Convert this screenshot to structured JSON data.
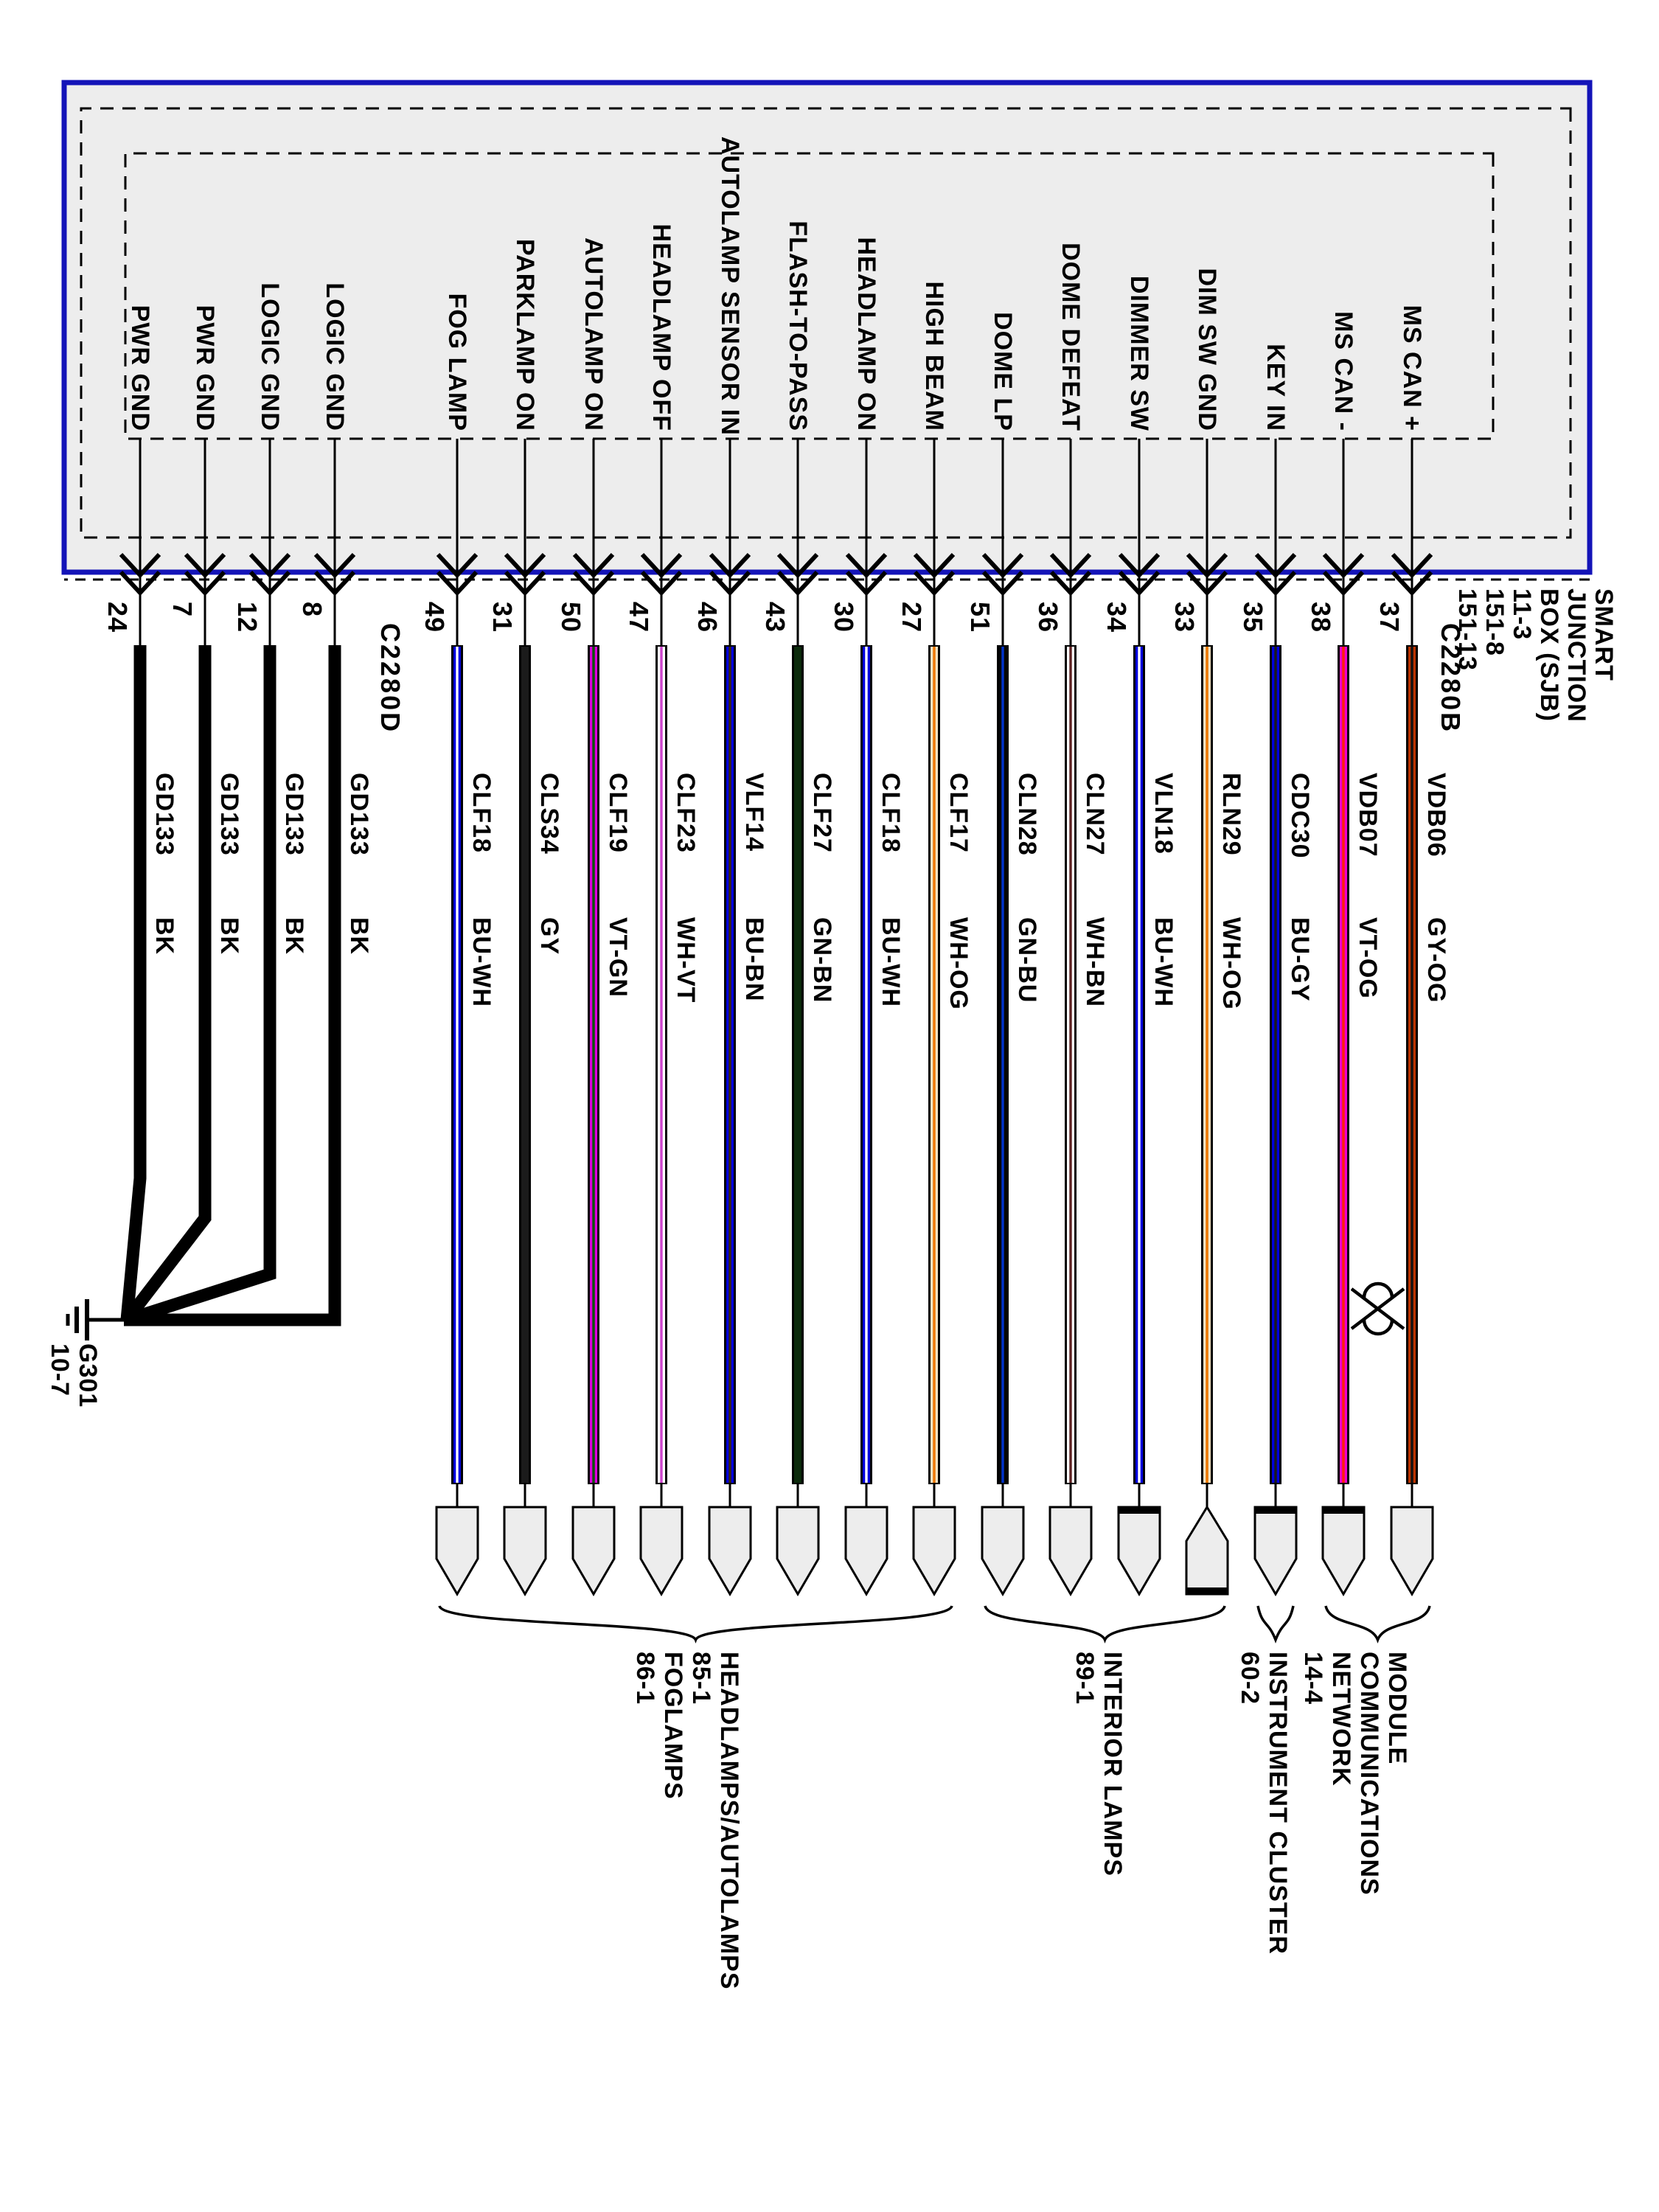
{
  "diagram": {
    "title_block_lines": [
      "SMART",
      "JUNCTION",
      "BOX (SJB)",
      "11-3",
      "151-8",
      "151-13"
    ],
    "connector_labels": {
      "left": "C2280D",
      "right": "C2280B"
    },
    "ground": {
      "name": "G301",
      "grid": "10-7"
    },
    "colors": {
      "box_border": "#1414b8",
      "box_fill": "#ededed",
      "line": "#000000"
    }
  },
  "wires": [
    {
      "pin": "24",
      "signal": "PWR GND",
      "circuit": "GD133",
      "color_code": "BK",
      "hex": "#000000",
      "stripe": null,
      "kind": "ground",
      "connector": "none"
    },
    {
      "pin": "7",
      "signal": "PWR GND",
      "circuit": "GD133",
      "color_code": "BK",
      "hex": "#000000",
      "stripe": null,
      "kind": "ground",
      "connector": "none"
    },
    {
      "pin": "12",
      "signal": "LOGIC GND",
      "circuit": "GD133",
      "color_code": "BK",
      "hex": "#000000",
      "stripe": null,
      "kind": "ground",
      "connector": "none"
    },
    {
      "pin": "8",
      "signal": "LOGIC GND",
      "circuit": "GD133",
      "color_code": "BK",
      "hex": "#000000",
      "stripe": null,
      "kind": "ground",
      "connector": "none"
    },
    {
      "pin": "49",
      "signal": "FOG LAMP",
      "circuit": "CLF18",
      "color_code": "BU-WH",
      "hex": "#0000dd",
      "stripe": "#ffffff",
      "kind": "signal",
      "connector": "plain"
    },
    {
      "pin": "31",
      "signal": "PARKLAMP ON",
      "circuit": "CLS34",
      "color_code": "GY",
      "hex": "#1b1b1b",
      "stripe": null,
      "kind": "signal",
      "connector": "plain"
    },
    {
      "pin": "50",
      "signal": "AUTOLAMP ON",
      "circuit": "CLF19",
      "color_code": "VT-GN",
      "hex": "#dd00dd",
      "stripe": "#005500",
      "kind": "signal",
      "connector": "plain"
    },
    {
      "pin": "47",
      "signal": "HEADLAMP OFF",
      "circuit": "CLF23",
      "color_code": "WH-VT",
      "hex": "#ffffff",
      "stripe": "#cc44cc",
      "kind": "signal",
      "connector": "plain"
    },
    {
      "pin": "46",
      "signal": "AUTOLAMP SENSOR IN",
      "circuit": "VLF14",
      "color_code": "BU-BN",
      "hex": "#0000dd",
      "stripe": "#3a2410",
      "kind": "signal",
      "connector": "plain"
    },
    {
      "pin": "43",
      "signal": "FLASH-TO-PASS",
      "circuit": "CLF27",
      "color_code": "GN-BN",
      "hex": "#0b2a0b",
      "stripe": null,
      "kind": "signal",
      "connector": "plain"
    },
    {
      "pin": "30",
      "signal": "HEADLAMP ON",
      "circuit": "CLF18",
      "color_code": "BU-WH",
      "hex": "#0000dd",
      "stripe": "#ffffff",
      "kind": "signal",
      "connector": "plain"
    },
    {
      "pin": "27",
      "signal": "HIGH BEAM",
      "circuit": "CLF17",
      "color_code": "WH-OG",
      "hex": "#f2e3c3",
      "stripe": "#ee7700",
      "kind": "signal",
      "connector": "plain"
    },
    {
      "pin": "51",
      "signal": "DOME LP",
      "circuit": "CLN28",
      "color_code": "GN-BU",
      "hex": "#050505",
      "stripe": "#0033cc",
      "kind": "signal",
      "connector": "plain"
    },
    {
      "pin": "36",
      "signal": "DOME DEFEAT",
      "circuit": "CLN27",
      "color_code": "WH-BN",
      "hex": "#ffffff",
      "stripe": "#5c2020",
      "kind": "signal",
      "connector": "plain"
    },
    {
      "pin": "34",
      "signal": "DIMMER SW",
      "circuit": "VLN18",
      "color_code": "BU-WH",
      "hex": "#0000dd",
      "stripe": "#ffffff",
      "kind": "signal",
      "connector": "thickleft"
    },
    {
      "pin": "33",
      "signal": "DIM SW GND",
      "circuit": "RLN29",
      "color_code": "WH-OG",
      "hex": "#f2e3c3",
      "stripe": "#ee7700",
      "kind": "signal",
      "connector": "male"
    },
    {
      "pin": "35",
      "signal": "KEY IN",
      "circuit": "CDC30",
      "color_code": "BU-GY",
      "hex": "#0000dd",
      "stripe": "#1a1a1a",
      "kind": "signal",
      "connector": "thickleft"
    },
    {
      "pin": "38",
      "signal": "MS CAN -",
      "circuit": "VDB07",
      "color_code": "VT-OG",
      "hex": "#ee00cc",
      "stripe": "#ff2200",
      "kind": "signal",
      "connector": "thickleft"
    },
    {
      "pin": "37",
      "signal": "MS CAN +",
      "circuit": "VDB06",
      "color_code": "GY-OG",
      "hex": "#bb3300",
      "stripe": "#111111",
      "kind": "signal",
      "connector": "plain"
    }
  ],
  "groups": [
    {
      "label_lines": [
        "HEADLAMPS/AUTOLAMPS",
        "85-1",
        "FOGLAMPS",
        "86-1"
      ],
      "from": 4,
      "to": 11
    },
    {
      "label_lines": [
        "INTERIOR LAMPS",
        "89-1"
      ],
      "from": 12,
      "to": 15
    },
    {
      "label_lines": [
        "INSTRUMENT CLUSTER",
        "60-2"
      ],
      "from": 16,
      "to": 16
    },
    {
      "label_lines": [
        "MODULE",
        "COMMUNICATIONS",
        "NETWORK",
        "14-4"
      ],
      "from": 17,
      "to": 18
    }
  ]
}
